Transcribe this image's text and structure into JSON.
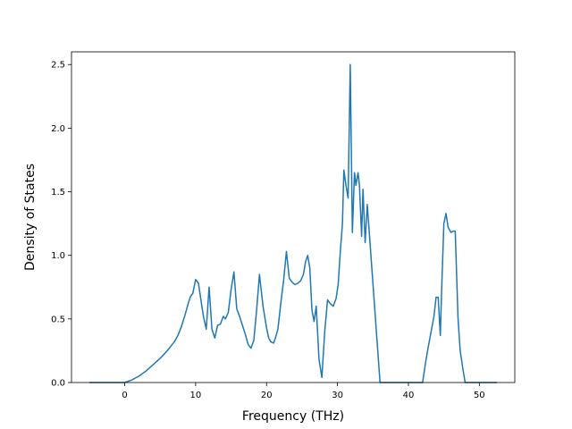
{
  "chart_data": {
    "type": "line",
    "title": "",
    "xlabel": "Frequency (THz)",
    "ylabel": "Density of States",
    "xlim": [
      -7.5,
      55.0
    ],
    "ylim": [
      0.0,
      2.6
    ],
    "x_ticks": [
      0,
      10,
      20,
      30,
      40,
      50
    ],
    "y_ticks": [
      0.0,
      0.5,
      1.0,
      1.5,
      2.0,
      2.5
    ],
    "y_tick_labels": [
      "0.0",
      "0.5",
      "1.0",
      "1.5",
      "2.0",
      "2.5"
    ],
    "grid": false,
    "legend": "none",
    "line_color": "#1f77b4",
    "series": [
      {
        "x": [
          -5.0,
          0.0,
          1.0,
          2.0,
          3.0,
          4.0,
          5.0,
          6.0,
          7.0,
          7.5,
          8.0,
          8.5,
          9.0,
          9.3,
          9.6,
          10.0,
          10.4,
          10.8,
          11.1,
          11.5,
          11.9,
          12.3,
          12.7,
          13.1,
          13.5,
          13.9,
          14.2,
          14.6,
          15.0,
          15.4,
          15.8,
          16.2,
          16.6,
          17.0,
          17.4,
          17.8,
          18.2,
          18.6,
          19.0,
          19.5,
          20.0,
          20.3,
          20.6,
          21.0,
          21.3,
          21.6,
          22.0,
          22.4,
          22.8,
          23.2,
          23.6,
          24.0,
          24.4,
          24.8,
          25.2,
          25.5,
          25.8,
          26.1,
          26.4,
          26.7,
          27.0,
          27.4,
          27.8,
          28.2,
          28.6,
          29.0,
          29.4,
          29.8,
          30.1,
          30.4,
          30.7,
          30.9,
          31.2,
          31.5,
          31.8,
          32.1,
          32.4,
          32.6,
          32.9,
          33.1,
          33.4,
          33.6,
          33.9,
          34.2,
          36.0,
          40.0,
          42.0,
          42.4,
          42.8,
          43.2,
          43.6,
          43.9,
          44.2,
          44.5,
          44.7,
          45.0,
          45.3,
          45.6,
          46.0,
          46.3,
          46.6,
          47.0,
          47.3,
          47.7,
          48.0,
          50.0,
          52.5
        ],
        "y": [
          0.0,
          0.0,
          0.02,
          0.05,
          0.09,
          0.14,
          0.19,
          0.25,
          0.32,
          0.37,
          0.44,
          0.53,
          0.63,
          0.68,
          0.7,
          0.81,
          0.78,
          0.63,
          0.52,
          0.42,
          0.75,
          0.42,
          0.35,
          0.45,
          0.46,
          0.52,
          0.5,
          0.55,
          0.73,
          0.87,
          0.58,
          0.52,
          0.45,
          0.38,
          0.3,
          0.27,
          0.33,
          0.57,
          0.85,
          0.6,
          0.43,
          0.35,
          0.32,
          0.31,
          0.36,
          0.42,
          0.62,
          0.8,
          1.03,
          0.82,
          0.79,
          0.77,
          0.78,
          0.8,
          0.85,
          0.95,
          1.0,
          0.9,
          0.57,
          0.48,
          0.6,
          0.18,
          0.04,
          0.4,
          0.65,
          0.62,
          0.6,
          0.66,
          0.77,
          1.03,
          1.25,
          1.67,
          1.55,
          1.45,
          2.5,
          1.18,
          1.65,
          1.55,
          1.65,
          1.55,
          1.15,
          1.52,
          1.1,
          1.4,
          0.0,
          0.0,
          0.0,
          0.15,
          0.28,
          0.4,
          0.52,
          0.67,
          0.67,
          0.37,
          0.75,
          1.25,
          1.33,
          1.22,
          1.18,
          1.19,
          1.19,
          0.5,
          0.25,
          0.1,
          0.0,
          0.0,
          0.0
        ]
      }
    ]
  }
}
